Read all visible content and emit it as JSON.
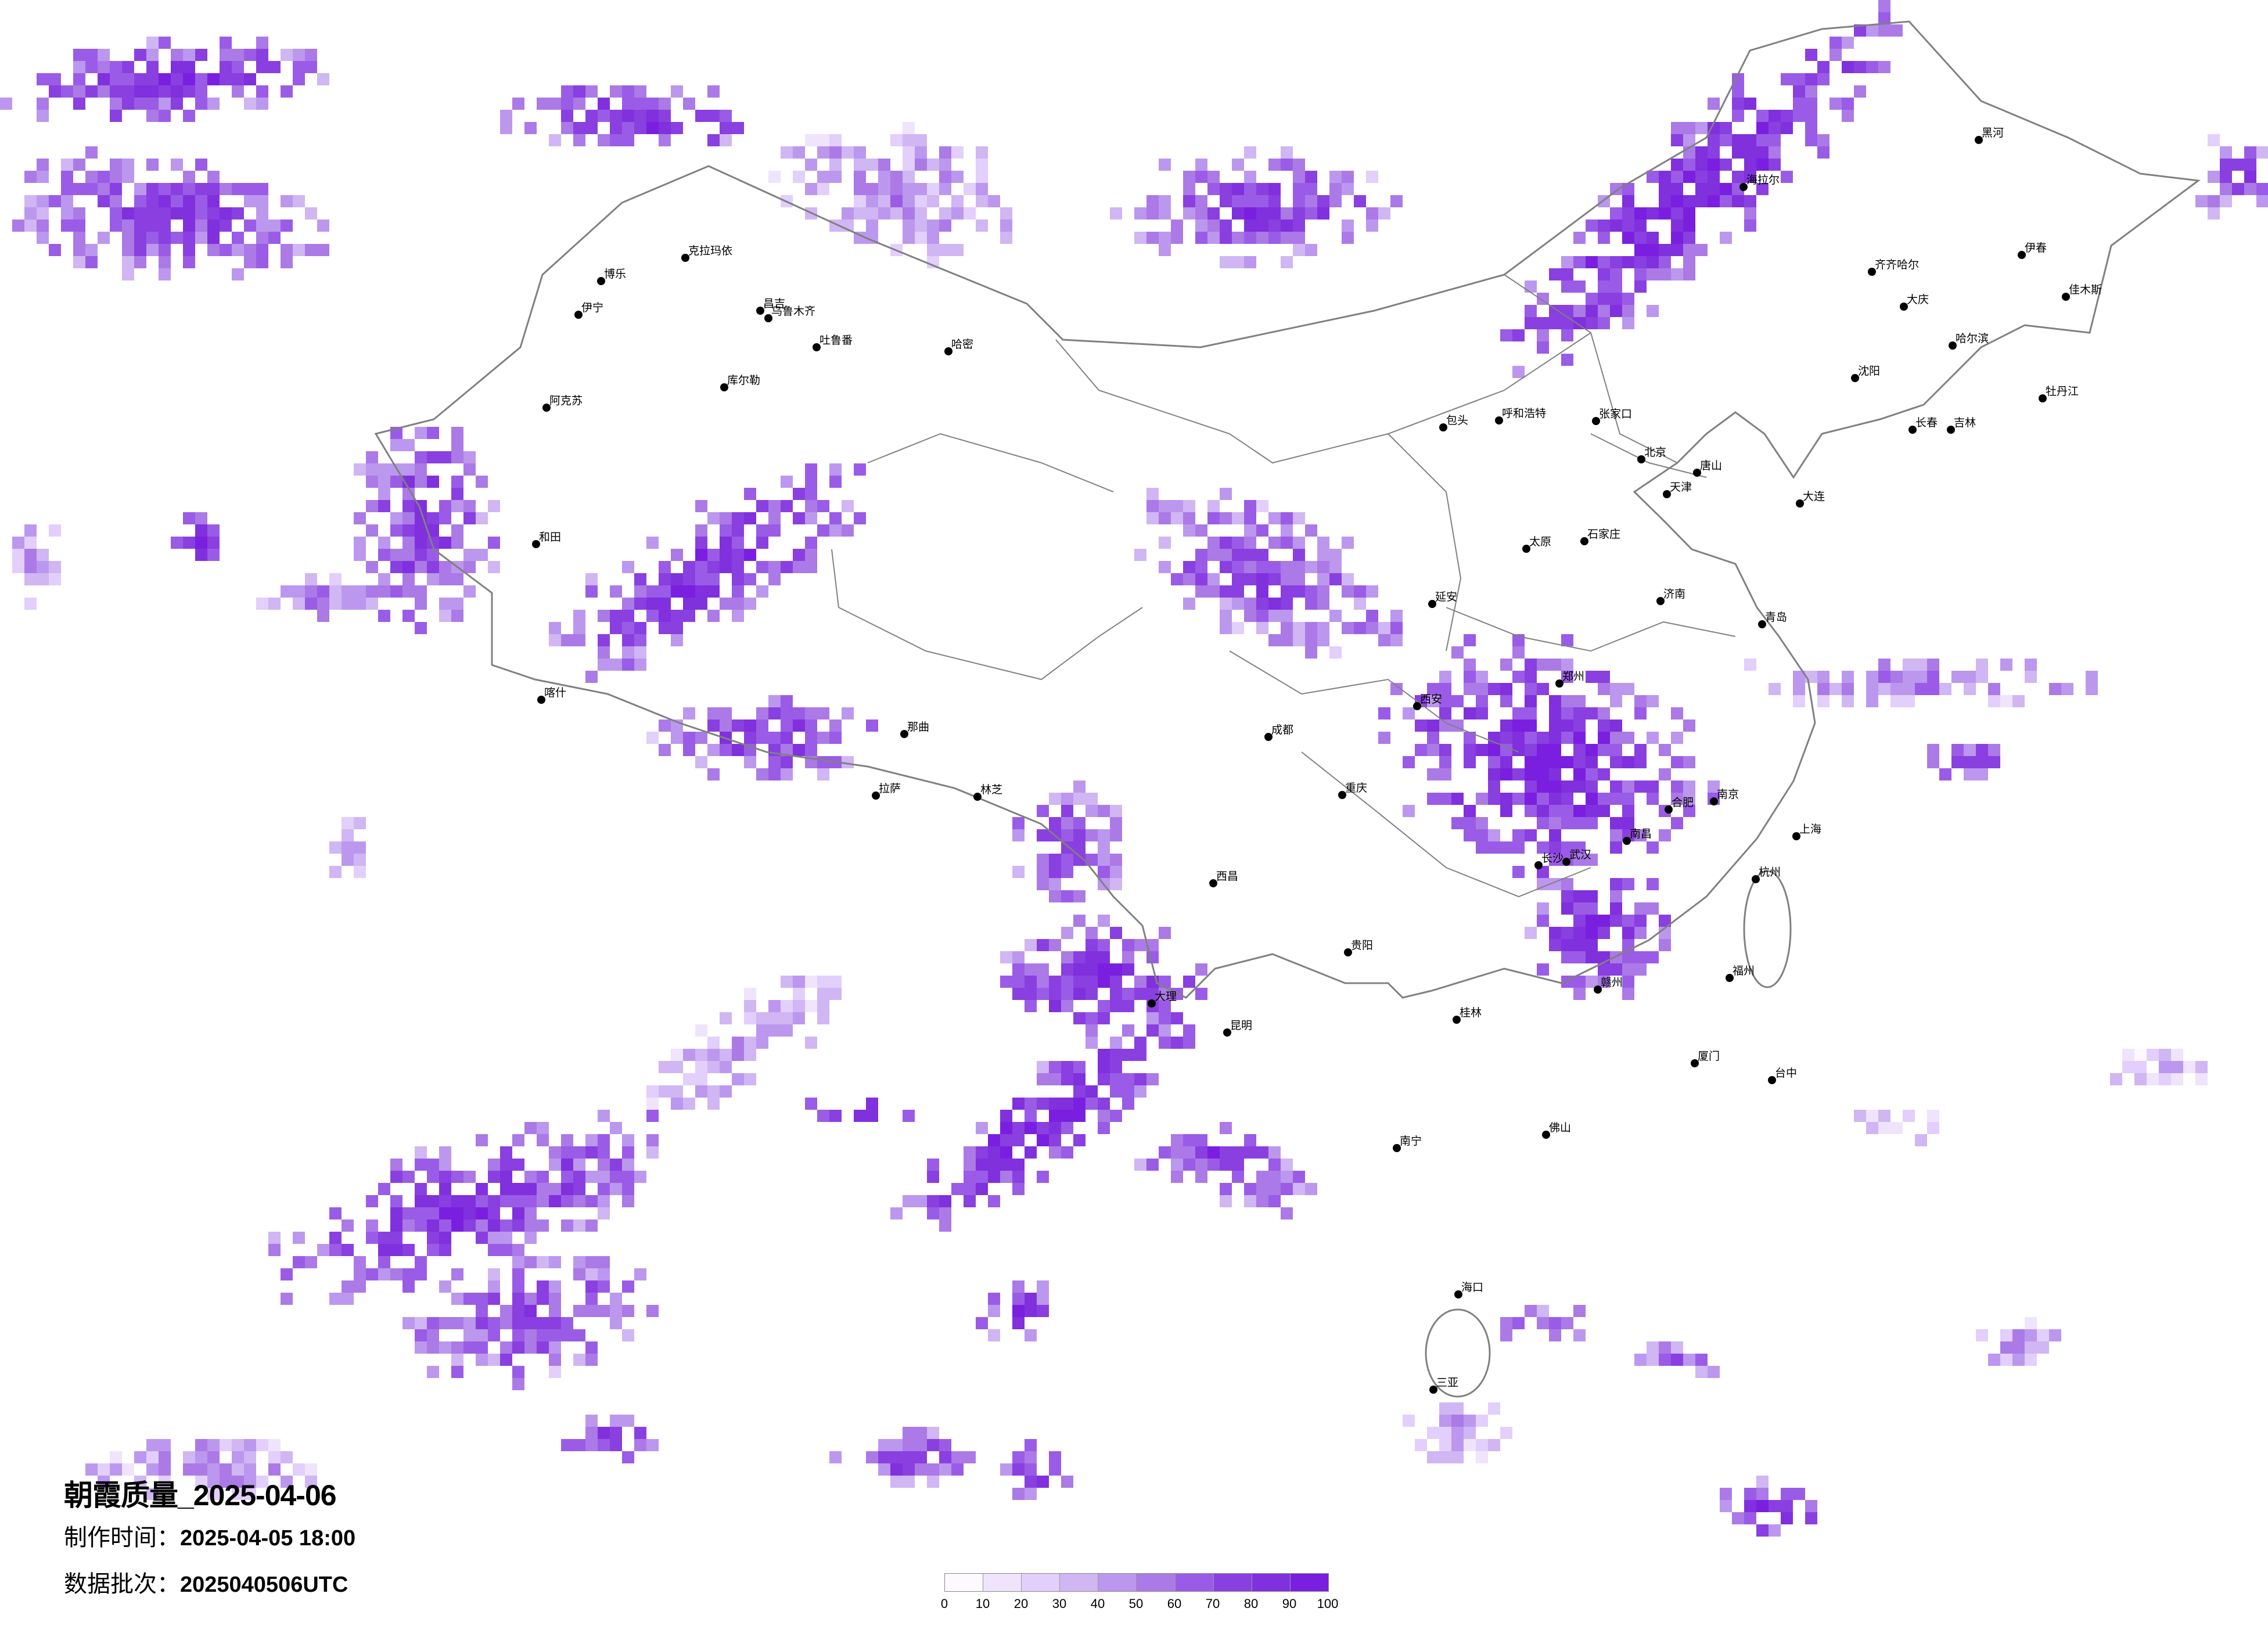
{
  "title": "朝霞质量_2025-04-06",
  "production_time": {
    "label": "制作时间：",
    "value": "2025-04-05 18:00"
  },
  "data_batch": {
    "label": "数据批次：",
    "value": "2025040506UTC"
  },
  "legend": {
    "ticks": [
      "0",
      "10",
      "20",
      "30",
      "40",
      "50",
      "60",
      "70",
      "80",
      "90",
      "100"
    ],
    "colors": [
      "#fdf9ff",
      "#efe4fc",
      "#e2cffb",
      "#d0b6f2",
      "#bc97ee",
      "#ab7ae6",
      "#9a5ce6",
      "#8a3fe0",
      "#8030dd",
      "#7a1fdf"
    ]
  },
  "map": {
    "border_color": "#808080",
    "city_dot_color": "#000000"
  },
  "cities": [
    "克拉玛依",
    "博乐",
    "伊宁",
    "昌吉",
    "乌鲁木齐",
    "吐鲁番",
    "哈密",
    "库尔勒",
    "阿克苏",
    "和田",
    "喀什",
    "那曲",
    "拉萨",
    "林芝",
    "呼和浩特",
    "包头",
    "张家口",
    "北京",
    "天津",
    "石家庄",
    "太原",
    "济南",
    "青岛",
    "郑州",
    "西安",
    "大连",
    "沈阳",
    "合肥",
    "南京",
    "上海",
    "杭州",
    "武汉",
    "延安",
    "唐山",
    "海拉尔",
    "齐齐哈尔",
    "哈尔滨",
    "长春",
    "吉林",
    "黑河",
    "伊春",
    "佳木斯",
    "牡丹江",
    "大庆",
    "成都",
    "重庆",
    "贵阳",
    "昆明",
    "长沙",
    "南昌",
    "南宁",
    "佛山",
    "福州",
    "厦门",
    "海口",
    "三亚",
    "台中",
    "桂林",
    "赣州",
    "大理",
    "西昌"
  ]
}
